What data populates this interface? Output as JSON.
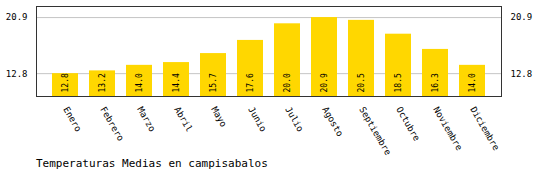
{
  "chart_data": {
    "type": "bar",
    "title": "Temperaturas Medias en campisabalos",
    "categories": [
      "Enero",
      "Febrero",
      "Marzo",
      "Abril",
      "Mayo",
      "Junio",
      "Julio",
      "Agosto",
      "Septiembre",
      "Octubre",
      "Noviembre",
      "Diciembre"
    ],
    "values": [
      12.8,
      13.2,
      14.0,
      14.4,
      15.7,
      17.6,
      20.0,
      20.9,
      20.5,
      18.5,
      16.3,
      14.0
    ],
    "value_labels": [
      "12.8",
      "13.2",
      "14.0",
      "14.4",
      "15.7",
      "17.6",
      "20.0",
      "20.9",
      "20.5",
      "18.5",
      "16.3",
      "14.0"
    ],
    "color": "#FFD700",
    "ylim": [
      9.5,
      22.5
    ],
    "yticks": [
      12.8,
      20.9
    ],
    "grid": true,
    "data_labels": true
  }
}
